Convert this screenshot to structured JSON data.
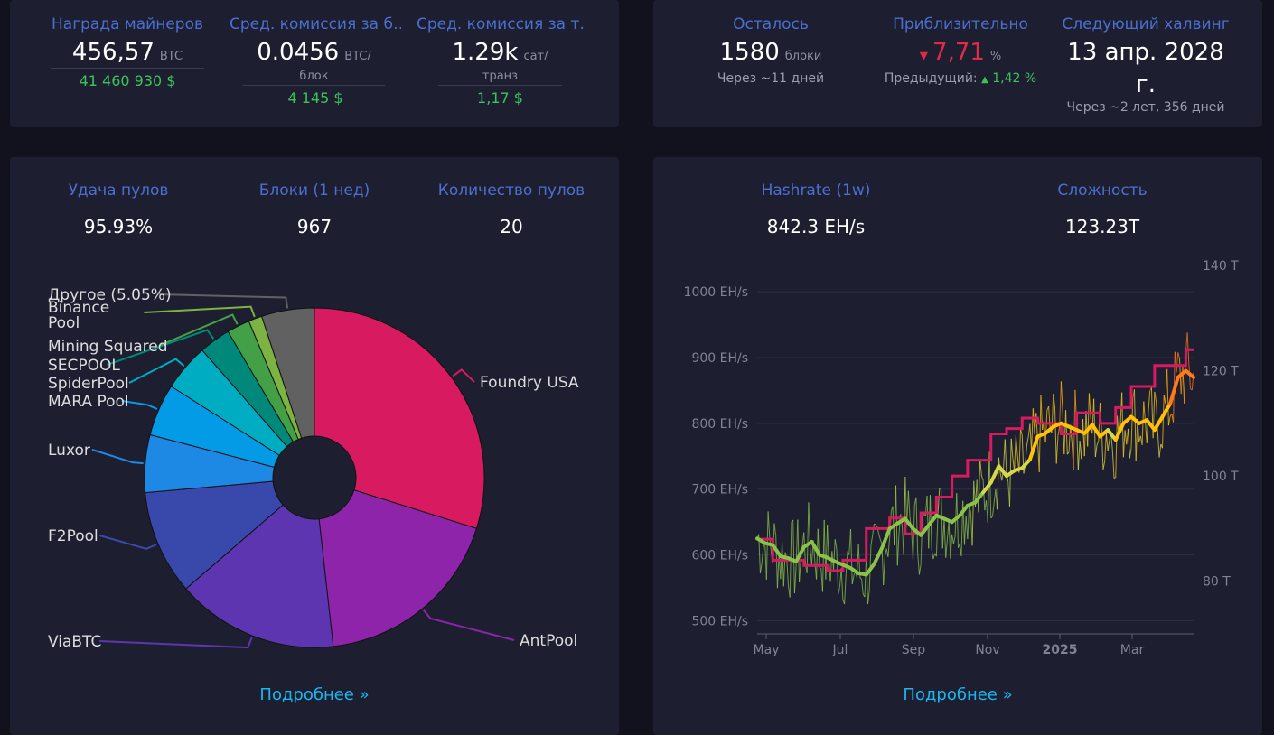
{
  "top_left": {
    "reward": {
      "label": "Награда майнеров",
      "value": "456,57",
      "unit": "BTC",
      "usd": "41 460 930 $"
    },
    "fee_block": {
      "label": "Сред. комиссия за б…",
      "value": "0.0456",
      "unit": "BTC/блок",
      "usd": "4 145 $"
    },
    "fee_tx": {
      "label": "Сред. комиссия за т…",
      "value": "1.29k",
      "unit": "сат/транз",
      "usd": "1,17 $"
    }
  },
  "top_right": {
    "remaining": {
      "label": "Осталось",
      "value": "1580",
      "unit": "блоки",
      "sub": "Через ~11 дней"
    },
    "estimate": {
      "label": "Приблизительно",
      "arrow": "▼",
      "value": "7,71",
      "unit": "%",
      "prev_label": "Предыдущий:",
      "prev_arrow": "▲",
      "prev_value": "1,42 %"
    },
    "halving": {
      "label": "Следующий халвинг",
      "line1": "13 апр. 2028",
      "line2": "г.",
      "sub": "Через ~2 лет, 356 дней"
    }
  },
  "pools": {
    "luck": {
      "label": "Удача пулов",
      "value": "95.93%"
    },
    "blocks": {
      "label": "Блоки (1 нед)",
      "value": "967"
    },
    "count": {
      "label": "Количество пулов",
      "value": "20"
    },
    "more": "Подробнее »"
  },
  "mining": {
    "hashrate": {
      "label": "Hashrate (1w)",
      "value": "842.3 EH/s"
    },
    "difficulty": {
      "label": "Сложность",
      "value": "123.23T"
    },
    "more": "Подробнее »"
  },
  "chart_data": [
    {
      "type": "pie",
      "slices": [
        {
          "name": "Foundry USA",
          "share": 30.0,
          "color": "#d81b60"
        },
        {
          "name": "AntPool",
          "share": 18.5,
          "color": "#8e24aa"
        },
        {
          "name": "ViaBTC",
          "share": 15.5,
          "color": "#5e35b1"
        },
        {
          "name": "F2Pool",
          "share": 10.0,
          "color": "#3949ab"
        },
        {
          "name": "Luxor",
          "share": 5.5,
          "color": "#1e88e5"
        },
        {
          "name": "MARA Pool",
          "share": 5.0,
          "color": "#039be5"
        },
        {
          "name": "SpiderPool",
          "share": 4.5,
          "color": "#00acc1"
        },
        {
          "name": "SECPOOL",
          "share": 3.0,
          "color": "#00897b"
        },
        {
          "name": "Mining Squared",
          "share": 2.2,
          "color": "#43a047"
        },
        {
          "name": "Binance Pool",
          "share": 1.3,
          "color": "#7cb342"
        },
        {
          "name": "Другое (5.05%)",
          "share": 5.05,
          "color": "#616161"
        }
      ]
    },
    {
      "type": "line",
      "x_ticks": [
        "May",
        "Jul",
        "Sep",
        "Nov",
        "2025",
        "Mar"
      ],
      "y_left_ticks": [
        "500 EH/s",
        "600 EH/s",
        "700 EH/s",
        "800 EH/s",
        "900 EH/s",
        "1000 EH/s"
      ],
      "y_left_range": [
        480,
        1040
      ],
      "y_right_ticks": [
        "80 T",
        "100 T",
        "120 T",
        "140 T"
      ],
      "y_right_range": [
        70,
        140
      ],
      "hashrate_smoothed": [
        625,
        618,
        615,
        598,
        595,
        590,
        612,
        620,
        600,
        596,
        590,
        585,
        580,
        572,
        570,
        586,
        610,
        640,
        648,
        655,
        640,
        630,
        645,
        660,
        655,
        650,
        660,
        675,
        680,
        695,
        710,
        735,
        720,
        728,
        732,
        745,
        780,
        785,
        795,
        800,
        795,
        790,
        785,
        798,
        780,
        790,
        775,
        800,
        810,
        800,
        805,
        790,
        810,
        830,
        870,
        880,
        870
      ],
      "difficulty_steps": [
        88,
        88,
        84,
        84,
        84,
        84,
        83,
        83,
        83,
        82,
        82,
        84,
        84,
        84,
        90,
        90,
        90,
        92,
        92,
        89,
        89,
        93,
        93,
        96,
        96,
        100,
        100,
        103,
        103,
        103,
        108,
        108,
        109,
        109,
        111,
        111,
        110,
        110,
        110,
        108,
        108,
        112,
        112,
        112,
        110,
        110,
        113,
        113,
        117,
        117,
        117,
        121,
        121,
        121,
        121,
        124,
        124
      ]
    }
  ]
}
